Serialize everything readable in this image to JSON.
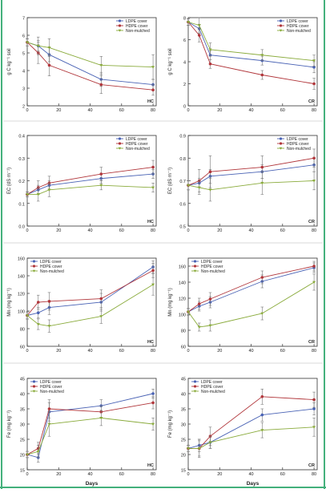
{
  "colors": {
    "ldpe": "#4a63b5",
    "hdpe": "#b1363b",
    "nonmulched": "#8aab3c",
    "frame_accent": "#43b07b",
    "errorbar": "#777777"
  },
  "x_axis": {
    "label": "Days",
    "ticks": [
      "0",
      "20",
      "40",
      "60",
      "80"
    ]
  },
  "chart_data": [
    {
      "id": "soc-hc",
      "type": "line",
      "ylabel": "g C kg⁻¹ soil",
      "corner_label": "HC",
      "legend_position": "top-right",
      "xlim": [
        0,
        82
      ],
      "ylim": [
        2,
        7
      ],
      "yticks": [
        "2",
        "3",
        "4",
        "5",
        "6",
        "7"
      ],
      "x": [
        0,
        7,
        14,
        47,
        80
      ],
      "series": [
        {
          "name": "LDPE cover",
          "values": [
            5.6,
            5.4,
            4.9,
            3.5,
            3.2
          ],
          "errors": [
            0.2,
            0.3,
            0.4,
            0.4,
            0.3
          ]
        },
        {
          "name": "HDPE cover",
          "values": [
            5.6,
            5.0,
            4.3,
            3.2,
            2.9
          ],
          "errors": [
            0.2,
            0.6,
            0.6,
            0.5,
            0.3
          ]
        },
        {
          "name": "Non-mulched",
          "values": [
            5.6,
            5.4,
            5.3,
            4.3,
            4.2
          ],
          "errors": [
            0.2,
            0.5,
            0.5,
            0.5,
            0.7
          ]
        }
      ]
    },
    {
      "id": "soc-cr",
      "type": "line",
      "ylabel": "g C kg⁻¹ soil",
      "corner_label": "CR",
      "legend_position": "top-right",
      "xlim": [
        0,
        82
      ],
      "ylim": [
        0,
        8
      ],
      "yticks": [
        "0",
        "2",
        "4",
        "6",
        "8"
      ],
      "x": [
        0,
        7,
        14,
        47,
        80
      ],
      "series": [
        {
          "name": "LDPE cover",
          "values": [
            7.6,
            7.0,
            4.6,
            4.1,
            3.5
          ],
          "errors": [
            0.3,
            0.4,
            0.4,
            0.4,
            0.5
          ]
        },
        {
          "name": "HDPE cover",
          "values": [
            7.6,
            6.4,
            3.8,
            2.8,
            2.0
          ],
          "errors": [
            0.3,
            0.6,
            0.4,
            0.4,
            0.5
          ]
        },
        {
          "name": "Non-mulched",
          "values": [
            7.6,
            7.3,
            5.1,
            4.6,
            4.1
          ],
          "errors": [
            0.3,
            0.7,
            0.6,
            0.5,
            0.5
          ]
        }
      ]
    },
    {
      "id": "ec-hc",
      "type": "line",
      "ylabel": "EC (dS m⁻¹)",
      "corner_label": "HC",
      "legend_position": "top-right",
      "xlim": [
        0,
        82
      ],
      "ylim": [
        0.0,
        0.4
      ],
      "yticks": [
        "0.0",
        "0.1",
        "0.2",
        "0.3",
        "0.4"
      ],
      "x": [
        0,
        7,
        14,
        47,
        80
      ],
      "series": [
        {
          "name": "LDPE cover",
          "values": [
            0.14,
            0.16,
            0.18,
            0.21,
            0.23
          ],
          "errors": [
            0.01,
            0.02,
            0.02,
            0.02,
            0.02
          ]
        },
        {
          "name": "HDPE cover",
          "values": [
            0.14,
            0.17,
            0.19,
            0.23,
            0.26
          ],
          "errors": [
            0.01,
            0.03,
            0.03,
            0.03,
            0.03
          ]
        },
        {
          "name": "Non-mulched",
          "values": [
            0.14,
            0.14,
            0.16,
            0.18,
            0.17
          ],
          "errors": [
            0.01,
            0.03,
            0.03,
            0.02,
            0.02
          ]
        }
      ]
    },
    {
      "id": "ec-cr",
      "type": "line",
      "ylabel": "EC (dS m⁻¹)",
      "corner_label": "CR",
      "legend_position": "top-right",
      "xlim": [
        0,
        82
      ],
      "ylim": [
        0.5,
        0.9
      ],
      "yticks": [
        "0.5",
        "0.6",
        "0.7",
        "0.8",
        "0.9"
      ],
      "x": [
        0,
        7,
        14,
        47,
        80
      ],
      "series": [
        {
          "name": "LDPE cover",
          "values": [
            0.68,
            0.69,
            0.72,
            0.74,
            0.77
          ],
          "errors": [
            0.02,
            0.02,
            0.03,
            0.03,
            0.03
          ]
        },
        {
          "name": "HDPE cover",
          "values": [
            0.68,
            0.7,
            0.74,
            0.76,
            0.8
          ],
          "errors": [
            0.02,
            0.05,
            0.07,
            0.05,
            0.04
          ]
        },
        {
          "name": "Non-mulched",
          "values": [
            0.68,
            0.67,
            0.66,
            0.69,
            0.7
          ],
          "errors": [
            0.02,
            0.03,
            0.05,
            0.05,
            0.04
          ]
        }
      ]
    },
    {
      "id": "mn-hc",
      "type": "line",
      "ylabel": "Mn (mg kg⁻¹)",
      "corner_label": "HC",
      "legend_position": "top-left",
      "xlim": [
        0,
        82
      ],
      "ylim": [
        60,
        160
      ],
      "yticks": [
        "60",
        "80",
        "100",
        "120",
        "140",
        "160"
      ],
      "x": [
        0,
        7,
        14,
        47,
        80
      ],
      "series": [
        {
          "name": "LDPE cover",
          "values": [
            95,
            98,
            104,
            110,
            150
          ],
          "errors": [
            4,
            6,
            8,
            10,
            7
          ]
        },
        {
          "name": "HDPE cover",
          "values": [
            95,
            110,
            111,
            114,
            146
          ],
          "errors": [
            4,
            8,
            10,
            10,
            8
          ]
        },
        {
          "name": "Non-mulched",
          "values": [
            95,
            85,
            83,
            94,
            130
          ],
          "errors": [
            4,
            6,
            7,
            8,
            12
          ]
        }
      ]
    },
    {
      "id": "mn-cr",
      "type": "line",
      "ylabel": "Mn (mg kg⁻¹)",
      "corner_label": "CR",
      "legend_position": "top-left",
      "xlim": [
        0,
        82
      ],
      "ylim": [
        60,
        170
      ],
      "yticks": [
        "60",
        "80",
        "100",
        "120",
        "140",
        "160"
      ],
      "x": [
        0,
        7,
        14,
        47,
        80
      ],
      "series": [
        {
          "name": "LDPE cover",
          "values": [
            103,
            110,
            115,
            141,
            158
          ],
          "errors": [
            4,
            6,
            7,
            8,
            6
          ]
        },
        {
          "name": "HDPE cover",
          "values": [
            103,
            113,
            119,
            146,
            160
          ],
          "errors": [
            4,
            7,
            8,
            8,
            6
          ]
        },
        {
          "name": "Non-mulched",
          "values": [
            103,
            84,
            86,
            101,
            140
          ],
          "errors": [
            4,
            5,
            7,
            8,
            10
          ]
        }
      ]
    },
    {
      "id": "fe-hc",
      "type": "line",
      "ylabel": "Fe (mg kg⁻¹)",
      "corner_label": "HC",
      "legend_position": "top-left",
      "xlim": [
        0,
        82
      ],
      "ylim": [
        15,
        45
      ],
      "yticks": [
        "15",
        "20",
        "25",
        "30",
        "35",
        "40",
        "45"
      ],
      "x": [
        0,
        7,
        14,
        47,
        80
      ],
      "series": [
        {
          "name": "LDPE cover",
          "values": [
            20,
            19,
            34,
            36,
            40
          ],
          "errors": [
            1,
            1.5,
            3,
            2,
            1.5
          ]
        },
        {
          "name": "HDPE cover",
          "values": [
            20,
            22,
            35,
            34,
            37
          ],
          "errors": [
            1,
            2,
            3,
            2,
            2
          ]
        },
        {
          "name": "Non-mulched",
          "values": [
            20,
            21,
            30,
            32,
            30
          ],
          "errors": [
            1,
            2,
            4,
            2.5,
            2
          ]
        }
      ]
    },
    {
      "id": "fe-cr",
      "type": "line",
      "ylabel": "Fe (mg kg⁻¹)",
      "corner_label": "CR",
      "legend_position": "top-left",
      "xlim": [
        0,
        82
      ],
      "ylim": [
        15,
        45
      ],
      "yticks": [
        "15",
        "20",
        "25",
        "30",
        "35",
        "40",
        "45"
      ],
      "x": [
        0,
        7,
        14,
        47,
        80
      ],
      "series": [
        {
          "name": "LDPE cover",
          "values": [
            22,
            23,
            24,
            33,
            35
          ],
          "errors": [
            1,
            2,
            2,
            2,
            2
          ]
        },
        {
          "name": "HDPE cover",
          "values": [
            22,
            22,
            26,
            39,
            38
          ],
          "errors": [
            1,
            3,
            3,
            2.5,
            2.5
          ]
        },
        {
          "name": "Non-mulched",
          "values": [
            22,
            22,
            24,
            28,
            29
          ],
          "errors": [
            1,
            2.5,
            2,
            2.5,
            3
          ]
        }
      ]
    }
  ]
}
